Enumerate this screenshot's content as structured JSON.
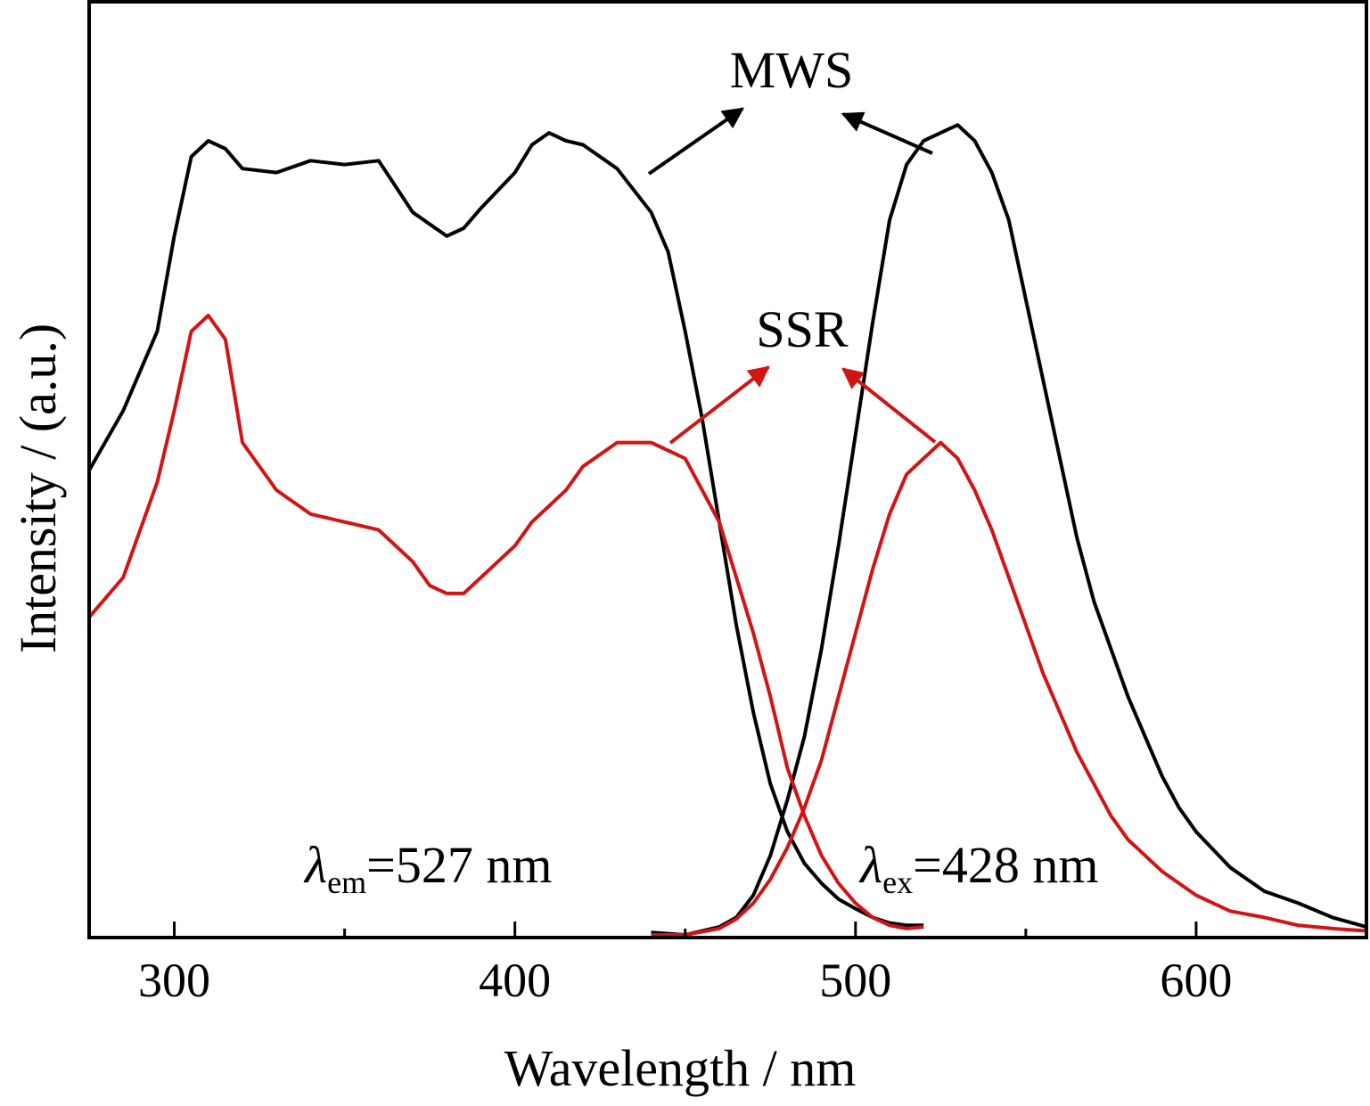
{
  "chart_data": {
    "type": "line",
    "xlabel": "Wavelength / nm",
    "ylabel": "Intensity / (a.u.)",
    "xlim": [
      275,
      650
    ],
    "ylim": [
      0,
      1.05
    ],
    "x_ticks": [
      300,
      400,
      500,
      600
    ],
    "x_tick_labels": [
      "300",
      "400",
      "500",
      "600"
    ],
    "x_minor_ticks": [
      350,
      450,
      550
    ],
    "grid": false,
    "colors": {
      "MWS": "#000000",
      "SSR": "#d11414"
    },
    "annotations": {
      "mws_label": "MWS",
      "ssr_label": "SSR",
      "em_symbol": "λ",
      "em_sub": "em",
      "em_value": "=527 nm",
      "ex_symbol": "λ",
      "ex_sub": "ex",
      "ex_value": "=428 nm"
    },
    "series": [
      {
        "name": "MWS",
        "role": "excitation",
        "color": "#000000",
        "x": [
          275,
          285,
          295,
          300,
          305,
          310,
          315,
          320,
          330,
          340,
          350,
          360,
          370,
          380,
          385,
          390,
          400,
          405,
          410,
          415,
          420,
          430,
          440,
          445,
          450,
          455,
          460,
          465,
          470,
          475,
          480,
          485,
          490,
          495,
          500,
          505,
          510,
          515,
          520
        ],
        "y": [
          0.585,
          0.66,
          0.76,
          0.88,
          0.98,
          1.0,
          0.99,
          0.965,
          0.96,
          0.975,
          0.97,
          0.975,
          0.91,
          0.88,
          0.89,
          0.915,
          0.96,
          0.995,
          1.01,
          1.0,
          0.995,
          0.965,
          0.91,
          0.86,
          0.76,
          0.65,
          0.52,
          0.39,
          0.28,
          0.19,
          0.13,
          0.09,
          0.065,
          0.045,
          0.033,
          0.022,
          0.015,
          0.012,
          0.012
        ]
      },
      {
        "name": "MWS",
        "role": "emission",
        "color": "#000000",
        "x": [
          440,
          450,
          460,
          465,
          470,
          475,
          480,
          485,
          490,
          495,
          500,
          505,
          510,
          515,
          520,
          525,
          530,
          535,
          540,
          545,
          550,
          555,
          560,
          565,
          570,
          575,
          580,
          585,
          590,
          595,
          600,
          610,
          620,
          630,
          640,
          650
        ],
        "y": [
          0.003,
          0.0,
          0.01,
          0.022,
          0.05,
          0.1,
          0.17,
          0.25,
          0.36,
          0.49,
          0.63,
          0.77,
          0.9,
          0.97,
          1.0,
          1.01,
          1.02,
          1.0,
          0.96,
          0.9,
          0.8,
          0.7,
          0.6,
          0.5,
          0.42,
          0.36,
          0.3,
          0.25,
          0.2,
          0.16,
          0.13,
          0.085,
          0.055,
          0.04,
          0.022,
          0.01
        ]
      },
      {
        "name": "SSR",
        "role": "excitation",
        "color": "#d11414",
        "x": [
          275,
          285,
          295,
          300,
          305,
          310,
          315,
          320,
          330,
          340,
          350,
          360,
          370,
          375,
          380,
          385,
          390,
          400,
          405,
          410,
          415,
          420,
          430,
          440,
          445,
          450,
          455,
          460,
          465,
          470,
          475,
          480,
          485,
          490,
          495,
          500,
          505,
          510,
          515,
          520
        ],
        "y": [
          0.4,
          0.45,
          0.57,
          0.66,
          0.76,
          0.78,
          0.75,
          0.62,
          0.56,
          0.53,
          0.52,
          0.51,
          0.47,
          0.44,
          0.43,
          0.43,
          0.45,
          0.49,
          0.52,
          0.54,
          0.56,
          0.59,
          0.62,
          0.62,
          0.61,
          0.6,
          0.56,
          0.52,
          0.45,
          0.38,
          0.3,
          0.21,
          0.15,
          0.1,
          0.065,
          0.04,
          0.022,
          0.012,
          0.008,
          0.01
        ]
      },
      {
        "name": "SSR",
        "role": "emission",
        "color": "#d11414",
        "x": [
          440,
          450,
          460,
          465,
          470,
          475,
          480,
          485,
          490,
          495,
          500,
          505,
          510,
          515,
          520,
          525,
          530,
          535,
          540,
          545,
          550,
          555,
          560,
          565,
          570,
          575,
          580,
          590,
          600,
          610,
          620,
          630,
          640,
          650
        ],
        "y": [
          0.0,
          0.0,
          0.008,
          0.02,
          0.04,
          0.07,
          0.11,
          0.16,
          0.22,
          0.3,
          0.38,
          0.46,
          0.53,
          0.58,
          0.6,
          0.62,
          0.6,
          0.56,
          0.51,
          0.45,
          0.39,
          0.33,
          0.28,
          0.23,
          0.19,
          0.15,
          0.12,
          0.08,
          0.05,
          0.03,
          0.022,
          0.012,
          0.008,
          0.005
        ]
      }
    ]
  }
}
